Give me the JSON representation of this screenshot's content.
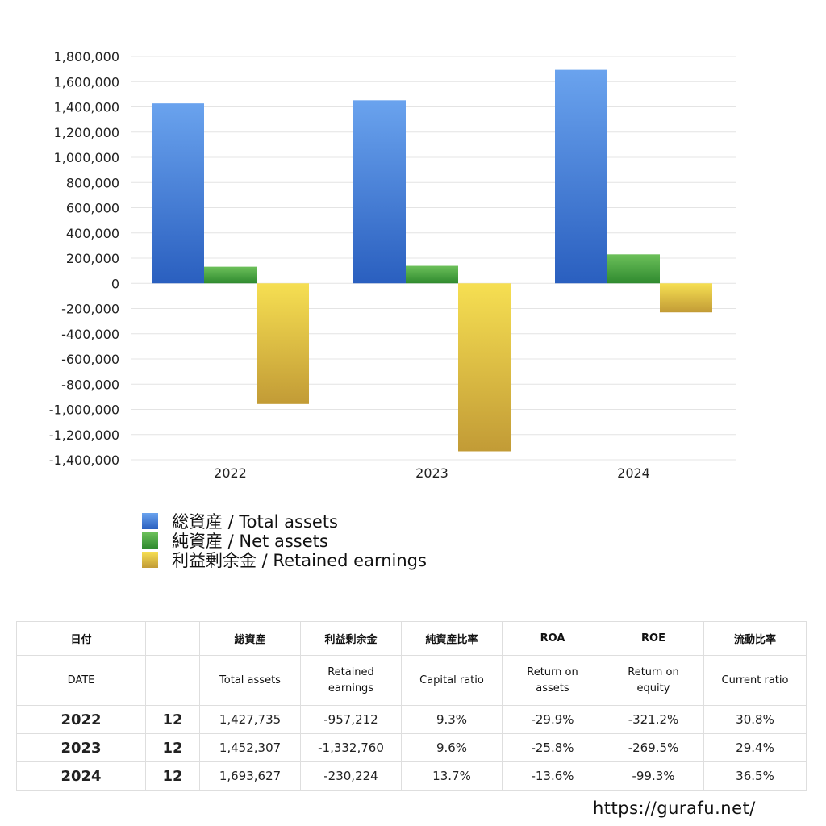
{
  "chart_data": {
    "type": "bar",
    "categories": [
      "2022",
      "2023",
      "2024"
    ],
    "series": [
      {
        "name": "総資産 / Total assets",
        "values": [
          1427735,
          1452307,
          1693627
        ],
        "color_top": "#6aa3ee",
        "color_bottom": "#2a5fbf"
      },
      {
        "name": "純資産 / Net assets",
        "values": [
          132000,
          139000,
          230000
        ],
        "color_top": "#6cc05a",
        "color_bottom": "#2f8a2f"
      },
      {
        "name": "利益剰余金 / Retained earnings",
        "values": [
          -957212,
          -1332760,
          -230224
        ],
        "color_top": "#f6df52",
        "color_bottom": "#c29b36"
      }
    ],
    "ylim": [
      -1400000,
      1800000
    ],
    "ticks": [
      "1,800,000",
      "1,600,000",
      "1,400,000",
      "1,200,000",
      "1,000,000",
      "800,000",
      "600,000",
      "400,000",
      "200,000",
      "0",
      "-200,000",
      "-400,000",
      "-600,000",
      "-800,000",
      "-1,000,000",
      "-1,200,000",
      "-1,400,000"
    ],
    "tick_values": [
      1800000,
      1600000,
      1400000,
      1200000,
      1000000,
      800000,
      600000,
      400000,
      200000,
      0,
      -200000,
      -400000,
      -600000,
      -800000,
      -1000000,
      -1200000,
      -1400000
    ],
    "grid": true,
    "legend_position": "bottom-left"
  },
  "table": {
    "headers_jp": [
      "日付",
      "",
      "総資産",
      "利益剰余金",
      "純資産比率",
      "ROA",
      "ROE",
      "流動比率"
    ],
    "headers_en": [
      [
        "DATE"
      ],
      [
        ""
      ],
      [
        "Total assets"
      ],
      [
        "Retained",
        "earnings"
      ],
      [
        "Capital ratio"
      ],
      [
        "Return on",
        "assets"
      ],
      [
        "Return on",
        "equity"
      ],
      [
        "Current ratio"
      ]
    ],
    "rows": [
      {
        "year": "2022",
        "month": "12",
        "total_assets": "1,427,735",
        "retained_earnings": "-957,212",
        "capital_ratio": "9.3%",
        "roa": "-29.9%",
        "roe": "-321.2%",
        "current_ratio": "30.8%"
      },
      {
        "year": "2023",
        "month": "12",
        "total_assets": "1,452,307",
        "retained_earnings": "-1,332,760",
        "capital_ratio": "9.6%",
        "roa": "-25.8%",
        "roe": "-269.5%",
        "current_ratio": "29.4%"
      },
      {
        "year": "2024",
        "month": "12",
        "total_assets": "1,693,627",
        "retained_earnings": "-230,224",
        "capital_ratio": "13.7%",
        "roa": "-13.6%",
        "roe": "-99.3%",
        "current_ratio": "36.5%"
      }
    ],
    "negative_color": "#d9452b"
  },
  "site_url": "https://gurafu.net/"
}
